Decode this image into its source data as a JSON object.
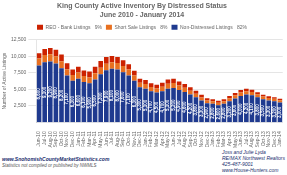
{
  "chart_data": {
    "type": "bar",
    "stacked": true,
    "title": "King County Active Inventory By Distressed Status\nJune 2010 - January 2014",
    "y_label": "Number of Active Listings",
    "annotations": [
      "www.SnohomishCountyMarketStatistics.com",
      "Statistics not compiled or published by NWMLS",
      "Joss and Julie Lyda\nRE/MAX Northwest Realtors\n425-487-9001\nwww.House-Hunters.com"
    ],
    "grid": true,
    "legend": "top",
    "ylim": [
      0,
      12500
    ],
    "yticks": [
      {
        "value": 2500,
        "label": "2,500"
      },
      {
        "value": 5000,
        "label": "5,000"
      },
      {
        "value": 7500,
        "label": "7,500"
      },
      {
        "value": 10000,
        "label": "10,000"
      },
      {
        "value": 12500,
        "label": "12,500"
      }
    ],
    "categories": [
      "Jun-10",
      "Jul-10",
      "Aug-10",
      "Sep-10",
      "Oct-10",
      "Nov-10",
      "Dec-10",
      "Jan-11",
      "Feb-11",
      "Mar-11",
      "Apr-11",
      "May-11",
      "Jun-11",
      "Jul-11",
      "Aug-11",
      "Sep-11",
      "Oct-11",
      "Nov-11",
      "Dec-11",
      "Jan-12",
      "Feb-12",
      "Mar-12",
      "Apr-12",
      "May-12",
      "Jun-12",
      "Jul-12",
      "Aug-12",
      "Sep-12",
      "Oct-12",
      "Nov-12",
      "Dec-12",
      "Jan-13",
      "Feb-13",
      "Mar-13",
      "Apr-13",
      "May-13",
      "Jun-13",
      "Jul-13",
      "Aug-13",
      "Sep-13",
      "Oct-13",
      "Nov-13",
      "Dec-13",
      "Jan-14"
    ],
    "series": [
      {
        "name": "Non-Distressed Listings   82%",
        "color": "#1f3a8f",
        "data_labels": true,
        "values": [
          8600,
          9100,
          9200,
          8900,
          8200,
          7100,
          6300,
          6600,
          6100,
          5900,
          6500,
          7300,
          7900,
          8100,
          8000,
          7600,
          7100,
          6300,
          5300,
          5100,
          4700,
          4500,
          4700,
          5100,
          5200,
          4900,
          4600,
          4200,
          3800,
          3300,
          2900,
          2800,
          2600,
          2800,
          3200,
          3600,
          4000,
          4200,
          4100,
          3800,
          3500,
          3300,
          3200,
          3000
        ],
        "value_labels": [
          "8,600",
          "9,100",
          "9,200",
          "8,900",
          "8,200",
          "7,100",
          "6,300",
          "6,600",
          "6,100",
          "5,900",
          "6,500",
          "7,300",
          "7,900",
          "8,100",
          "8,000",
          "7,600",
          "7,100",
          "6,300",
          "5,300",
          "5,100",
          "4,700",
          "4,500",
          "4,700",
          "5,100",
          "5,200",
          "4,900",
          "4,600",
          "4,200",
          "3,800",
          "3,300",
          "2,900",
          "2,800",
          "2,600",
          "2,800",
          "3,200",
          "3,600",
          "4,000",
          "4,200",
          "4,100",
          "3,800",
          "3,500",
          "3,300",
          "3,200",
          "3,000"
        ]
      },
      {
        "name": "Short Sale Listings   8%",
        "color": "#e87020",
        "values": [
          1050,
          1100,
          1100,
          1100,
          1050,
          950,
          880,
          940,
          900,
          890,
          940,
          980,
          990,
          1000,
          990,
          940,
          890,
          790,
          690,
          690,
          640,
          640,
          690,
          740,
          740,
          690,
          640,
          590,
          540,
          470,
          410,
          390,
          370,
          390,
          440,
          490,
          520,
          510,
          490,
          450,
          410,
          380,
          360,
          340
        ]
      },
      {
        "name": "REO - Bank Listings   9%",
        "color": "#cc2200",
        "values": [
          820,
          920,
          960,
          1010,
          1010,
          910,
          810,
          860,
          860,
          910,
          960,
          1010,
          1010,
          960,
          910,
          860,
          810,
          710,
          610,
          610,
          560,
          560,
          610,
          660,
          660,
          610,
          560,
          510,
          460,
          390,
          330,
          310,
          290,
          300,
          330,
          360,
          370,
          360,
          340,
          310,
          280,
          260,
          240,
          230
        ]
      }
    ]
  }
}
